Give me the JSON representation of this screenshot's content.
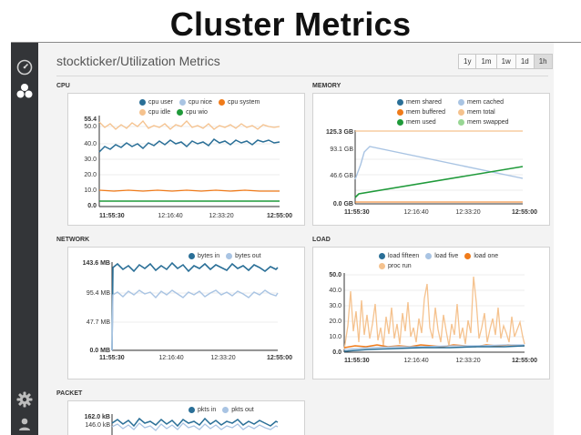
{
  "slide": {
    "title": "Cluster Metrics"
  },
  "page": {
    "header": "stockticker/Utilization Metrics"
  },
  "time_ranges": [
    {
      "label": "1y",
      "active": false
    },
    {
      "label": "1m",
      "active": false
    },
    {
      "label": "1w",
      "active": false
    },
    {
      "label": "1d",
      "active": false
    },
    {
      "label": "1h",
      "active": true
    }
  ],
  "sidebar": {
    "items": [
      {
        "icon": "dashboard-icon"
      },
      {
        "icon": "cluster-icon"
      },
      {
        "icon": "gear-icon"
      },
      {
        "icon": "user-icon"
      }
    ]
  },
  "colors": {
    "dark_blue": "#2a6f97",
    "light_blue": "#a9c4e3",
    "orange": "#f07b1a",
    "peach": "#f5c28e",
    "green": "#1f9a3a",
    "light_green": "#98d694",
    "sidebar": "#333538"
  },
  "panels": {
    "cpu": {
      "title": "CPU",
      "legend": [
        {
          "label": "cpu user",
          "color": "#2a6f97"
        },
        {
          "label": "cpu nice",
          "color": "#a9c4e3"
        },
        {
          "label": "cpu system",
          "color": "#f07b1a"
        },
        {
          "label": "cpu idle",
          "color": "#f5c28e"
        },
        {
          "label": "cpu wio",
          "color": "#1f9a3a"
        }
      ],
      "y_ticks": [
        "55.4",
        "50.0",
        "40.0",
        "30.0",
        "20.0",
        "10.0",
        "0.0"
      ],
      "x_ticks": [
        "11:55:30",
        "12:16:40",
        "12:33:20",
        "12:55:00"
      ]
    },
    "memory": {
      "title": "MEMORY",
      "legend": [
        {
          "label": "mem shared",
          "color": "#2a6f97"
        },
        {
          "label": "mem cached",
          "color": "#a9c4e3"
        },
        {
          "label": "mem buffered",
          "color": "#f07b1a"
        },
        {
          "label": "mem total",
          "color": "#f5c28e"
        },
        {
          "label": "mem used",
          "color": "#1f9a3a"
        },
        {
          "label": "mem swapped",
          "color": "#98d694"
        }
      ],
      "y_ticks": [
        "125.3 GB",
        "93.1 GB",
        "46.6 GB",
        "0.0 GB"
      ],
      "x_ticks": [
        "11:55:30",
        "12:16:40",
        "12:33:20",
        "12:55:00"
      ]
    },
    "network": {
      "title": "NETWORK",
      "legend": [
        {
          "label": "bytes in",
          "color": "#2a6f97"
        },
        {
          "label": "bytes out",
          "color": "#a9c4e3"
        }
      ],
      "y_ticks": [
        "143.6 MB",
        "95.4 MB",
        "47.7 MB",
        "0.0 MB"
      ],
      "x_ticks": [
        "11:55:30",
        "12:16:40",
        "12:33:20",
        "12:55:00"
      ]
    },
    "load": {
      "title": "LOAD",
      "legend": [
        {
          "label": "load fifteen",
          "color": "#2a6f97"
        },
        {
          "label": "load five",
          "color": "#a9c4e3"
        },
        {
          "label": "load one",
          "color": "#f07b1a"
        },
        {
          "label": "proc run",
          "color": "#f5c28e"
        }
      ],
      "y_ticks": [
        "50.0",
        "40.0",
        "30.0",
        "20.0",
        "10.0",
        "0.0"
      ],
      "x_ticks": [
        "11:55:30",
        "12:16:40",
        "12:33:20",
        "12:55:00"
      ]
    },
    "packet": {
      "title": "PACKET",
      "legend": [
        {
          "label": "pkts in",
          "color": "#2a6f97"
        },
        {
          "label": "pkts out",
          "color": "#a9c4e3"
        }
      ],
      "y_ticks": [
        "162.0 kB",
        "146.0 kB"
      ]
    }
  }
}
